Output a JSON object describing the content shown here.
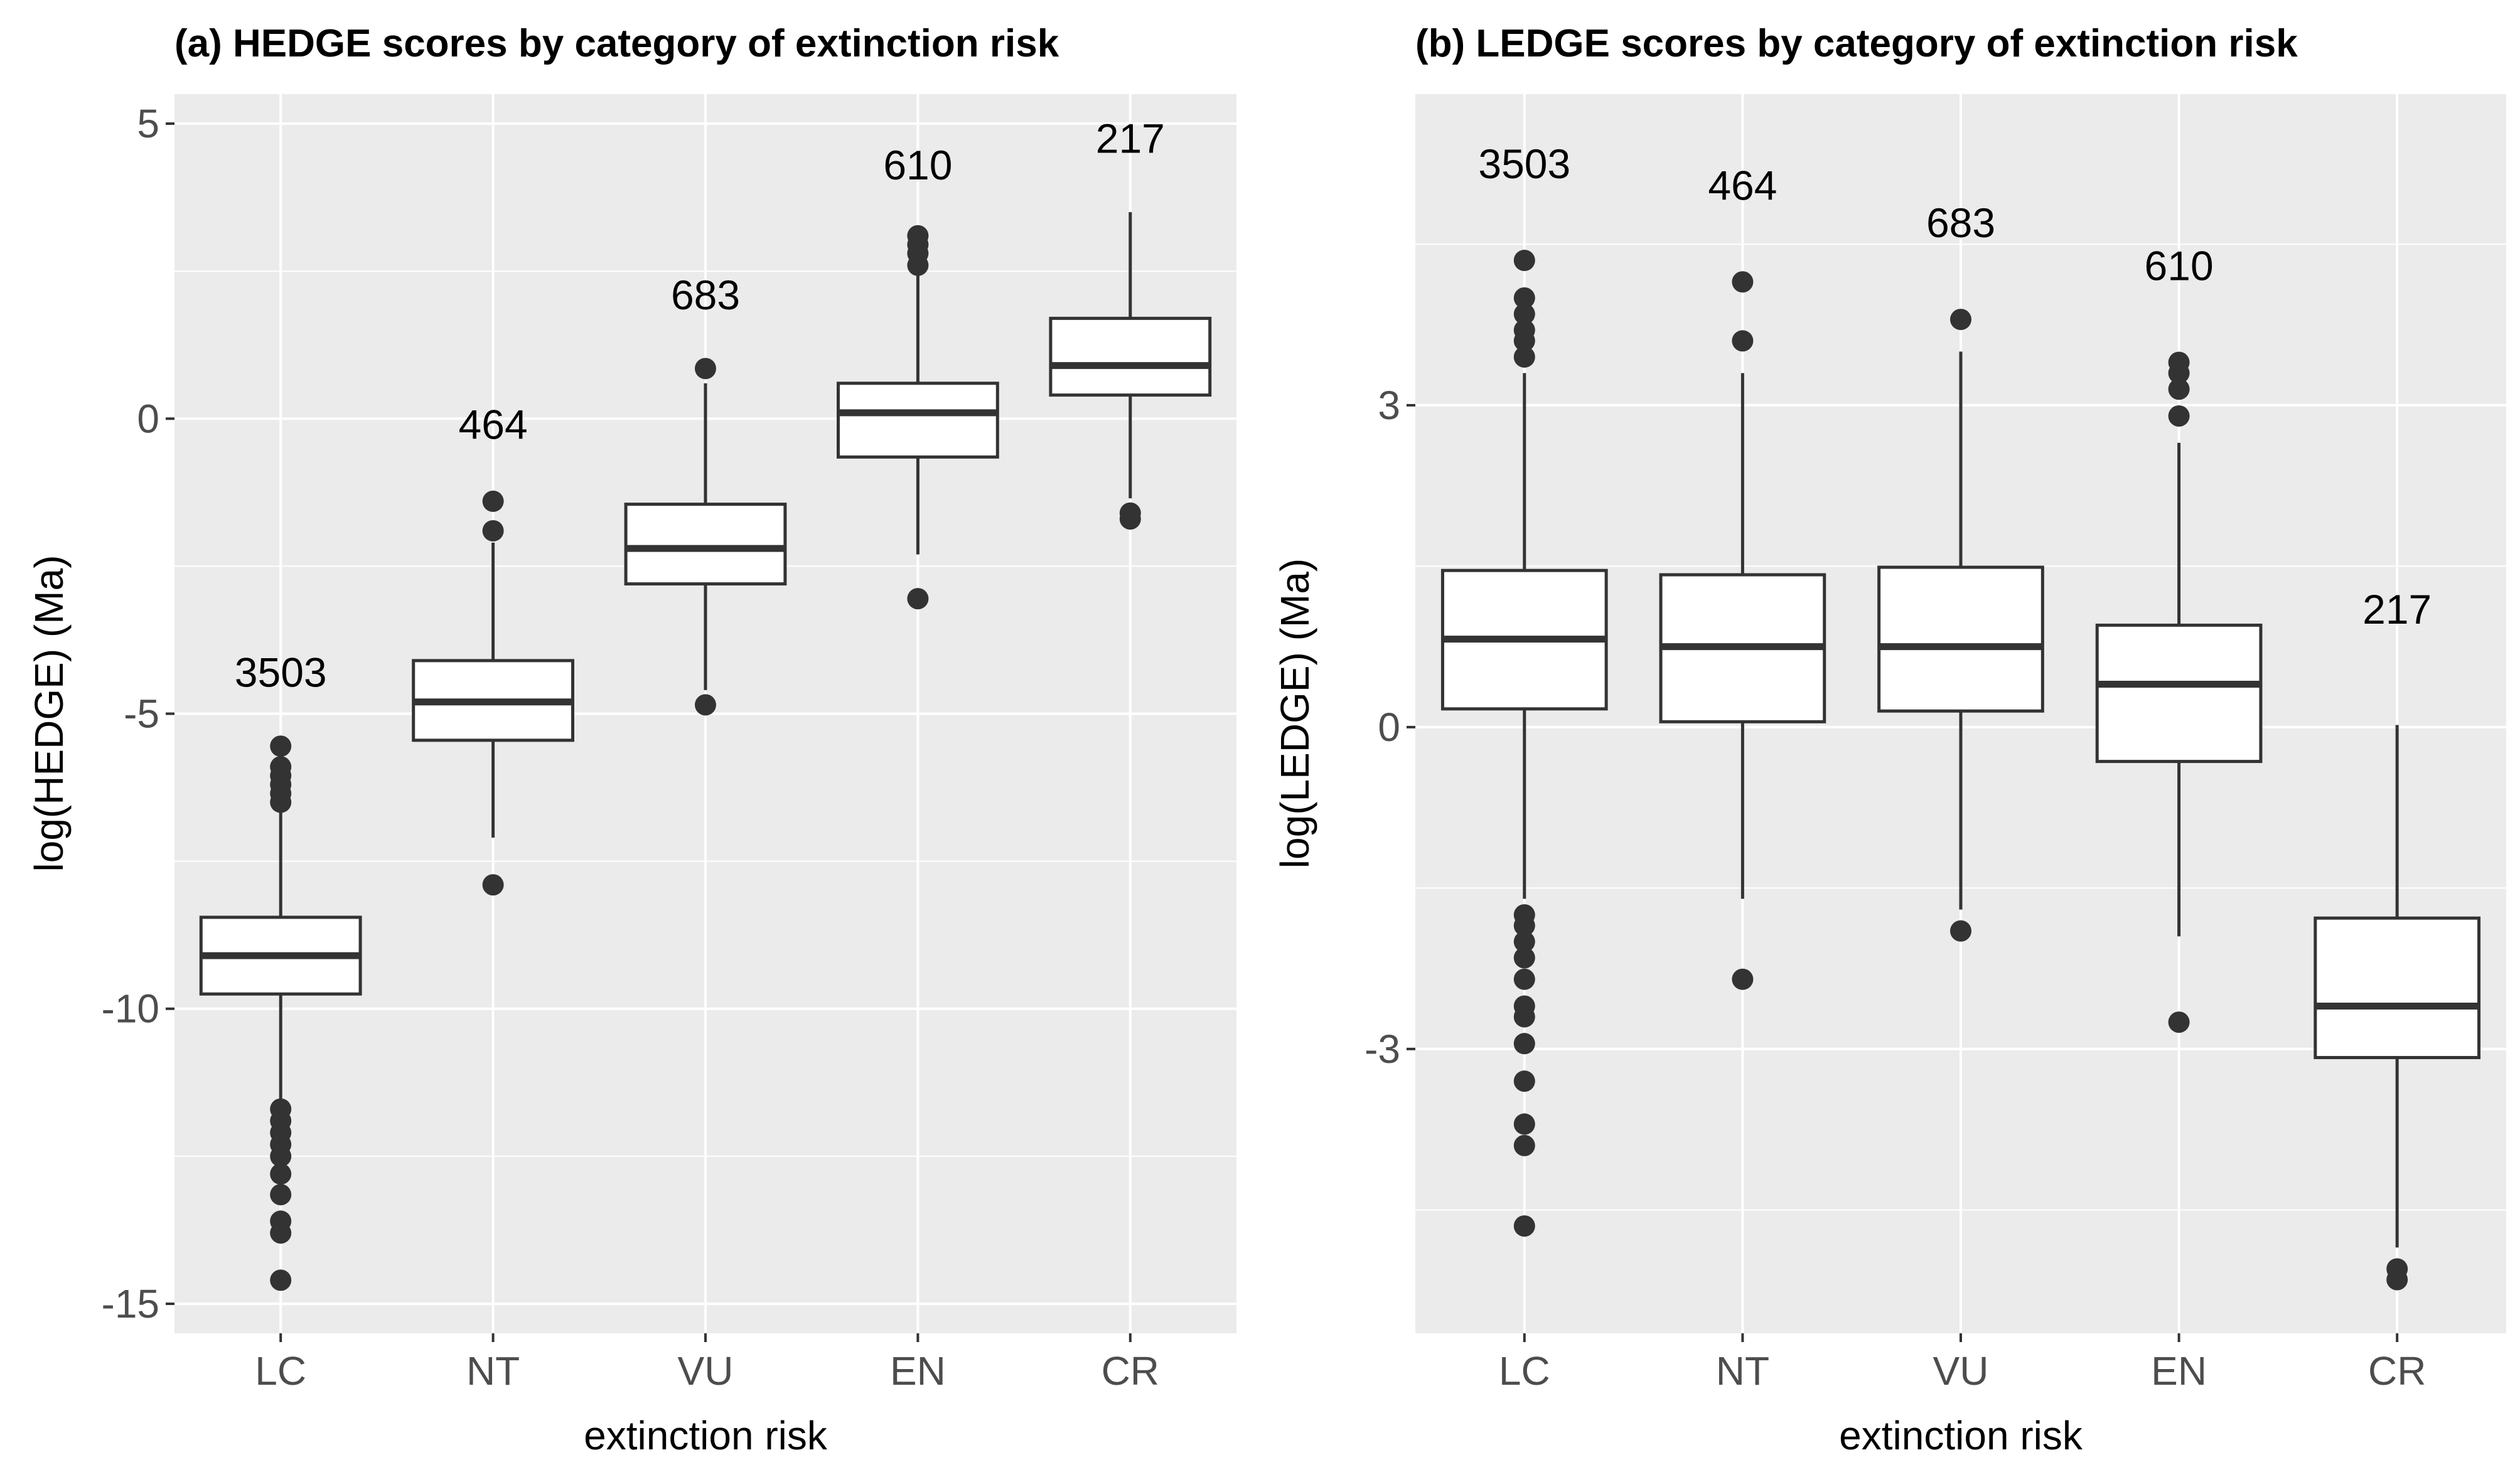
{
  "chart_data": [
    {
      "type": "box",
      "title": "(a) HEDGE scores by category of extinction risk",
      "xlabel": "extinction risk",
      "ylabel": "log(HEDGE) (Ma)",
      "ylim": [
        -15.5,
        5.5
      ],
      "yticks": [
        5,
        0,
        -5,
        -10,
        -15
      ],
      "ytick_labels": [
        "5",
        "0",
        "-5",
        "-10",
        "-15"
      ],
      "grid": true,
      "categories": [
        "LC",
        "NT",
        "VU",
        "EN",
        "CR"
      ],
      "boxes": [
        {
          "category": "LC",
          "count_label": "3503",
          "count_y": -4.3,
          "q1": -9.75,
          "median": -9.1,
          "q3": -8.45,
          "whisker_low": -11.6,
          "whisker_high": -6.6,
          "outliers": [
            -5.55,
            -5.9,
            -6.05,
            -6.2,
            -6.35,
            -6.5,
            -11.7,
            -11.9,
            -12.1,
            -12.3,
            -12.5,
            -12.8,
            -13.15,
            -13.6,
            -13.8,
            -14.6
          ]
        },
        {
          "category": "NT",
          "count_label": "464",
          "count_y": -0.1,
          "q1": -5.45,
          "median": -4.8,
          "q3": -4.1,
          "whisker_low": -7.1,
          "whisker_high": -2.1,
          "outliers": [
            -1.4,
            -1.9,
            -7.9
          ]
        },
        {
          "category": "VU",
          "count_label": "683",
          "count_y": 2.1,
          "q1": -2.8,
          "median": -2.2,
          "q3": -1.45,
          "whisker_low": -4.6,
          "whisker_high": 0.6,
          "outliers": [
            0.85,
            -4.85
          ]
        },
        {
          "category": "EN",
          "count_label": "610",
          "count_y": 4.3,
          "q1": -0.65,
          "median": 0.1,
          "q3": 0.6,
          "whisker_low": -2.3,
          "whisker_high": 2.45,
          "outliers": [
            2.6,
            2.8,
            2.95,
            3.1,
            -3.05
          ]
        },
        {
          "category": "CR",
          "count_label": "217",
          "count_y": 4.75,
          "q1": 0.4,
          "median": 0.9,
          "q3": 1.7,
          "whisker_low": -1.35,
          "whisker_high": 3.5,
          "outliers": [
            -1.6,
            -1.7
          ]
        }
      ]
    },
    {
      "type": "box",
      "title": "(b) LEDGE scores by category of extinction risk",
      "xlabel": "extinction risk",
      "ylabel": "log(LEDGE) (Ma)",
      "ylim": [
        -5.65,
        5.9
      ],
      "yticks": [
        3,
        0,
        -3
      ],
      "ytick_labels": [
        "3",
        "0",
        "-3"
      ],
      "grid": true,
      "categories": [
        "LC",
        "NT",
        "VU",
        "EN",
        "CR"
      ],
      "boxes": [
        {
          "category": "LC",
          "count_label": "3503",
          "count_y": 5.25,
          "q1": 0.17,
          "median": 0.82,
          "q3": 1.46,
          "whisker_low": -1.6,
          "whisker_high": 3.3,
          "outliers": [
            4.35,
            4.0,
            3.85,
            3.7,
            3.6,
            3.45,
            -1.75,
            -1.85,
            -2.0,
            -2.15,
            -2.35,
            -2.6,
            -2.7,
            -2.95,
            -3.3,
            -3.7,
            -3.9,
            -4.65
          ]
        },
        {
          "category": "NT",
          "count_label": "464",
          "count_y": 5.05,
          "q1": 0.05,
          "median": 0.75,
          "q3": 1.42,
          "whisker_low": -1.6,
          "whisker_high": 3.3,
          "outliers": [
            4.15,
            3.6,
            -2.35
          ]
        },
        {
          "category": "VU",
          "count_label": "683",
          "count_y": 4.7,
          "q1": 0.15,
          "median": 0.75,
          "q3": 1.49,
          "whisker_low": -1.7,
          "whisker_high": 3.5,
          "outliers": [
            3.8,
            -1.9
          ]
        },
        {
          "category": "EN",
          "count_label": "610",
          "count_y": 4.3,
          "q1": -0.32,
          "median": 0.4,
          "q3": 0.95,
          "whisker_low": -1.95,
          "whisker_high": 2.65,
          "outliers": [
            3.4,
            3.3,
            3.15,
            2.9,
            -2.75
          ]
        },
        {
          "category": "CR",
          "count_label": "217",
          "count_y": 1.1,
          "q1": -3.08,
          "median": -2.6,
          "q3": -1.78,
          "whisker_low": -4.85,
          "whisker_high": 0.02,
          "outliers": [
            -5.05,
            -5.15
          ]
        }
      ]
    }
  ]
}
